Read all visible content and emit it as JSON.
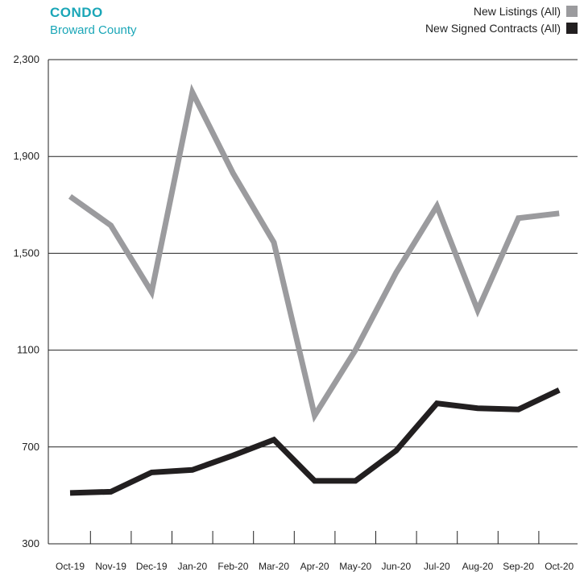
{
  "header": {
    "title": "CONDO",
    "subtitle": "Broward County",
    "title_color": "#1aa6b7"
  },
  "legend": [
    {
      "label": "New Listings (All)",
      "color": "#9b9b9e"
    },
    {
      "label": "New Signed Contracts (All)",
      "color": "#221f20"
    }
  ],
  "chart_data": {
    "type": "line",
    "categories": [
      "Oct-19",
      "Nov-19",
      "Dec-19",
      "Jan-20",
      "Feb-20",
      "Mar-20",
      "Apr-20",
      "May-20",
      "Jun-20",
      "Jul-20",
      "Aug-20",
      "Sep-20",
      "Oct-20"
    ],
    "series": [
      {
        "name": "New Listings (All)",
        "color": "#9b9b9e",
        "values": [
          1735,
          1615,
          1340,
          2165,
          1830,
          1545,
          830,
          1100,
          1420,
          1695,
          1265,
          1645,
          1665
        ]
      },
      {
        "name": "New Signed Contracts (All)",
        "color": "#221f20",
        "values": [
          510,
          515,
          595,
          605,
          665,
          730,
          560,
          560,
          685,
          880,
          860,
          855,
          935
        ]
      }
    ],
    "ylim": [
      300,
      2300
    ],
    "yticks": [
      {
        "value": 2300,
        "label": "2,300"
      },
      {
        "value": 1900,
        "label": "1,900"
      },
      {
        "value": 1500,
        "label": "1,500"
      },
      {
        "value": 1100,
        "label": "1100"
      },
      {
        "value": 700,
        "label": "700"
      },
      {
        "value": 300,
        "label": "300"
      }
    ],
    "grid": true
  }
}
